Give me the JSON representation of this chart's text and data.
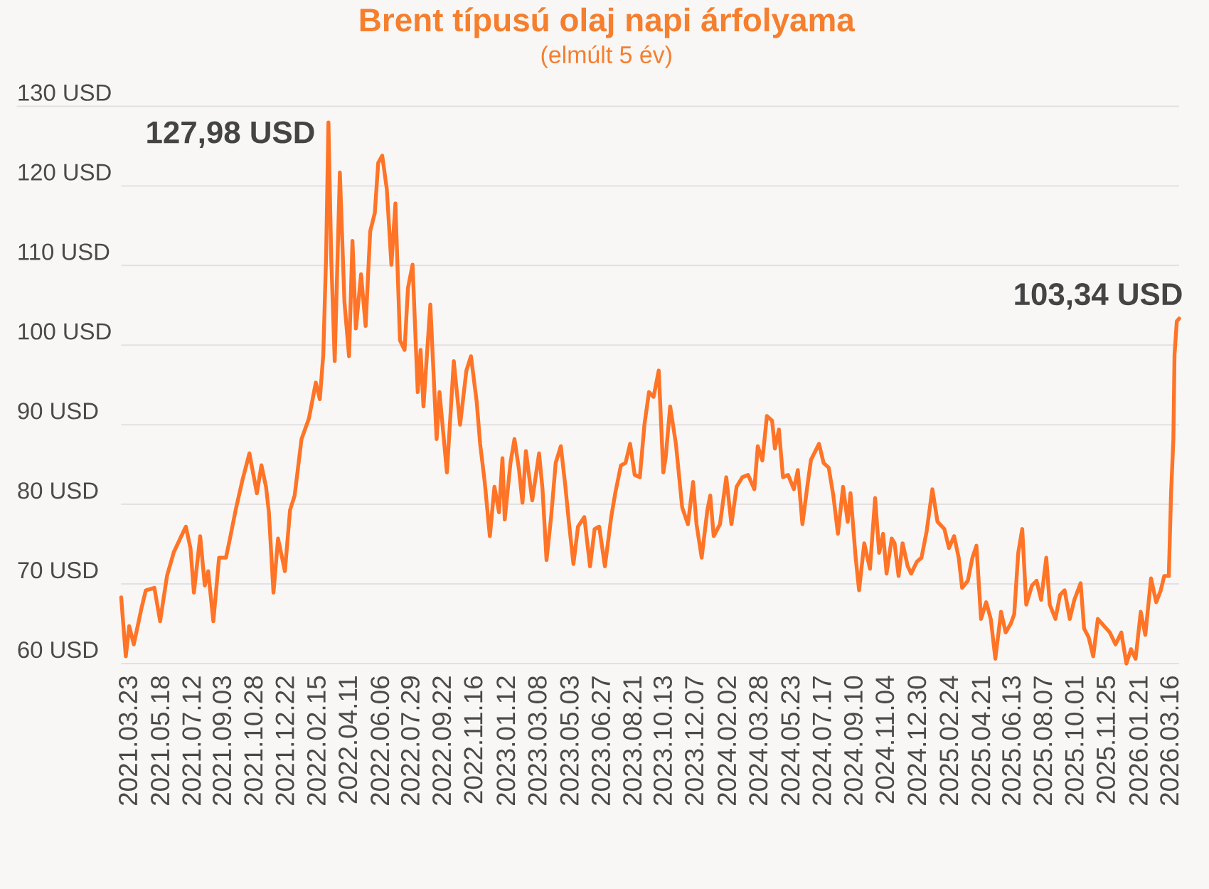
{
  "chart_data": {
    "type": "line",
    "title": "Brent típusú olaj napi árfolyama",
    "subtitle": "(elmúlt 5 év)",
    "x": [
      "2021-03-11",
      "2021-03-19",
      "2021-03-25",
      "2021-04-02",
      "2021-04-15",
      "2021-04-23",
      "2021-05-08",
      "2021-05-18",
      "2021-05-30",
      "2021-06-11",
      "2021-06-24",
      "2021-07-02",
      "2021-07-10",
      "2021-07-16",
      "2021-07-27",
      "2021-08-04",
      "2021-08-10",
      "2021-08-19",
      "2021-08-29",
      "2021-09-10",
      "2021-09-17",
      "2021-09-27",
      "2021-10-09",
      "2021-10-21",
      "2021-11-03",
      "2021-11-11",
      "2021-11-19",
      "2021-11-24",
      "2021-12-02",
      "2021-12-10",
      "2021-12-22",
      "2021-12-31",
      "2022-01-08",
      "2022-01-20",
      "2022-02-02",
      "2022-02-14",
      "2022-02-21",
      "2022-02-27",
      "2022-03-04",
      "2022-03-08",
      "2022-03-13",
      "2022-03-19",
      "2022-03-28",
      "2022-04-05",
      "2022-04-13",
      "2022-04-19",
      "2022-04-25",
      "2022-05-04",
      "2022-05-12",
      "2022-05-20",
      "2022-05-28",
      "2022-06-03",
      "2022-06-10",
      "2022-06-18",
      "2022-06-26",
      "2022-07-03",
      "2022-07-11",
      "2022-07-19",
      "2022-07-25",
      "2022-08-02",
      "2022-08-11",
      "2022-08-16",
      "2022-08-21",
      "2022-09-02",
      "2022-09-13",
      "2022-09-18",
      "2022-10-01",
      "2022-10-13",
      "2022-10-24",
      "2022-11-04",
      "2022-11-12",
      "2022-11-22",
      "2022-11-28",
      "2022-12-06",
      "2022-12-15",
      "2022-12-23",
      "2022-12-31",
      "2023-01-06",
      "2023-01-10",
      "2023-01-20",
      "2023-01-27",
      "2023-02-04",
      "2023-02-10",
      "2023-02-16",
      "2023-02-27",
      "2023-03-11",
      "2023-03-17",
      "2023-03-24",
      "2023-04-01",
      "2023-04-09",
      "2023-04-18",
      "2023-04-26",
      "2023-05-02",
      "2023-05-10",
      "2023-05-18",
      "2023-05-29",
      "2023-06-08",
      "2023-06-16",
      "2023-06-24",
      "2023-07-04",
      "2023-07-15",
      "2023-07-22",
      "2023-08-01",
      "2023-08-09",
      "2023-08-17",
      "2023-08-25",
      "2023-09-03",
      "2023-09-11",
      "2023-09-19",
      "2023-09-27",
      "2023-10-06",
      "2023-10-14",
      "2023-10-18",
      "2023-10-26",
      "2023-11-05",
      "2023-11-16",
      "2023-11-26",
      "2023-12-05",
      "2023-12-11",
      "2023-12-20",
      "2023-12-30",
      "2024-01-04",
      "2024-01-10",
      "2024-01-21",
      "2024-02-01",
      "2024-02-10",
      "2024-02-19",
      "2024-02-29",
      "2024-03-10",
      "2024-03-21",
      "2024-03-27",
      "2024-04-04",
      "2024-04-12",
      "2024-04-21",
      "2024-04-26",
      "2024-05-03",
      "2024-05-10",
      "2024-05-19",
      "2024-05-29",
      "2024-06-05",
      "2024-06-13",
      "2024-06-22",
      "2024-06-28",
      "2024-07-12",
      "2024-07-20",
      "2024-07-29",
      "2024-08-06",
      "2024-08-14",
      "2024-08-23",
      "2024-08-31",
      "2024-09-05",
      "2024-09-14",
      "2024-09-20",
      "2024-09-29",
      "2024-10-09",
      "2024-10-18",
      "2024-10-25",
      "2024-11-01",
      "2024-11-07",
      "2024-11-16",
      "2024-11-21",
      "2024-11-28",
      "2024-12-05",
      "2024-12-14",
      "2024-12-20",
      "2024-12-30",
      "2025-01-07",
      "2025-01-16",
      "2025-01-26",
      "2025-02-04",
      "2025-02-16",
      "2025-02-24",
      "2025-03-05",
      "2025-03-13",
      "2025-03-19",
      "2025-03-29",
      "2025-04-06",
      "2025-04-13",
      "2025-04-21",
      "2025-04-30",
      "2025-05-08",
      "2025-05-16",
      "2025-05-26",
      "2025-06-03",
      "2025-06-12",
      "2025-06-18",
      "2025-06-25",
      "2025-07-02",
      "2025-07-09",
      "2025-07-19",
      "2025-07-27",
      "2025-08-04",
      "2025-08-13",
      "2025-08-19",
      "2025-08-29",
      "2025-09-06",
      "2025-09-14",
      "2025-09-23",
      "2025-10-01",
      "2025-10-12",
      "2025-10-18",
      "2025-10-26",
      "2025-11-03",
      "2025-11-11",
      "2025-11-22",
      "2025-12-02",
      "2025-12-12",
      "2025-12-22",
      "2025-12-31",
      "2026-01-08",
      "2026-01-16",
      "2026-01-25",
      "2026-02-02",
      "2026-02-12",
      "2026-02-21",
      "2026-03-01",
      "2026-03-07",
      "2026-03-15",
      "2026-03-19",
      "2026-03-23",
      "2026-03-25",
      "2026-03-29",
      "2026-04-02"
    ],
    "values": [
      68.3,
      60.9,
      64.7,
      62.4,
      66.8,
      69.2,
      69.5,
      65.3,
      71,
      74,
      76,
      77.2,
      74.5,
      68.9,
      76,
      69.8,
      71.6,
      65.3,
      73.3,
      73.3,
      75.7,
      79.3,
      83.1,
      86.4,
      81.4,
      84.9,
      82.2,
      79,
      68.9,
      75.7,
      71.6,
      79.3,
      81.1,
      88.2,
      90.8,
      95.3,
      93.2,
      98.8,
      111.3,
      127.98,
      110.7,
      98,
      121.7,
      105.4,
      98.6,
      113.1,
      102.1,
      108.9,
      102.4,
      114.3,
      116.6,
      122.9,
      123.8,
      119.6,
      110.1,
      117.8,
      100.6,
      99.4,
      107.2,
      110.1,
      94.1,
      99.4,
      92.3,
      105.1,
      88.2,
      94.1,
      84,
      98,
      90,
      96.8,
      98.6,
      92.9,
      87.6,
      82.8,
      76,
      82.2,
      79,
      85.8,
      78.1,
      85.2,
      88.2,
      84.3,
      80.2,
      86.7,
      80.5,
      86.4,
      81.9,
      73,
      78.4,
      85.2,
      87.3,
      82.2,
      77.8,
      72.5,
      77.2,
      78.4,
      72.2,
      76.9,
      77.2,
      72.2,
      78.4,
      81.4,
      84.9,
      85.2,
      87.6,
      83.7,
      83.4,
      90,
      94.1,
      93.5,
      96.8,
      84,
      85.8,
      92.3,
      87.6,
      79.6,
      77.5,
      82.8,
      77.5,
      73.3,
      79.3,
      81.1,
      76,
      77.5,
      83.4,
      77.5,
      82.2,
      83.4,
      83.7,
      81.9,
      87.3,
      85.5,
      91.1,
      90.5,
      87,
      89.4,
      83.4,
      83.7,
      81.9,
      84.3,
      77.5,
      82.5,
      85.6,
      87.6,
      85.2,
      84.6,
      81.1,
      76.3,
      82.2,
      77.8,
      81.4,
      73.3,
      69.2,
      75.1,
      71.9,
      80.8,
      73.9,
      76.3,
      71.3,
      75.7,
      75.1,
      71,
      75.1,
      72.2,
      71.3,
      72.8,
      73.3,
      76.6,
      81.9,
      77.8,
      76.9,
      74.5,
      76,
      73.3,
      69.5,
      70.4,
      73.3,
      74.8,
      65.6,
      67.7,
      65.6,
      60.6,
      66.5,
      63.9,
      65,
      66.2,
      73.9,
      76.9,
      67.4,
      69.8,
      70.4,
      68,
      73.3,
      67.4,
      65.6,
      68.6,
      69.2,
      65.6,
      68,
      70.1,
      64.4,
      63.3,
      60.9,
      65.6,
      64.7,
      63.9,
      62.4,
      63.9,
      60,
      61.8,
      60.6,
      66.5,
      63.6,
      70.7,
      67.7,
      69.2,
      71,
      71,
      81.4,
      88.2,
      98.8,
      103,
      103.34
    ],
    "color": "#ff7426",
    "xlim": [
      "2021-03-11",
      "2026-04-02"
    ],
    "xticks": [
      {
        "value": "2021-03-23",
        "label": "2021.03.23"
      },
      {
        "value": "2021-05-18",
        "label": "2021.05.18"
      },
      {
        "value": "2021-07-12",
        "label": "2021.07.12"
      },
      {
        "value": "2021-09-03",
        "label": "2021.09.03"
      },
      {
        "value": "2021-10-28",
        "label": "2021.10.28"
      },
      {
        "value": "2021-12-22",
        "label": "2021.12.22"
      },
      {
        "value": "2022-02-15",
        "label": "2022.02.15"
      },
      {
        "value": "2022-04-11",
        "label": "2022.04.11"
      },
      {
        "value": "2022-06-06",
        "label": "2022.06.06"
      },
      {
        "value": "2022-07-29",
        "label": "2022.07.29"
      },
      {
        "value": "2022-09-22",
        "label": "2022.09.22"
      },
      {
        "value": "2022-11-16",
        "label": "2022.11.16"
      },
      {
        "value": "2023-01-12",
        "label": "2023.01.12"
      },
      {
        "value": "2023-03-08",
        "label": "2023.03.08"
      },
      {
        "value": "2023-05-03",
        "label": "2023.05.03"
      },
      {
        "value": "2023-06-27",
        "label": "2023.06.27"
      },
      {
        "value": "2023-08-21",
        "label": "2023.08.21"
      },
      {
        "value": "2023-10-13",
        "label": "2023.10.13"
      },
      {
        "value": "2023-12-07",
        "label": "2023.12.07"
      },
      {
        "value": "2024-02-02",
        "label": "2024.02.02"
      },
      {
        "value": "2024-03-28",
        "label": "2024.03.28"
      },
      {
        "value": "2024-05-23",
        "label": "2024.05.23"
      },
      {
        "value": "2024-07-17",
        "label": "2024.07.17"
      },
      {
        "value": "2024-09-10",
        "label": "2024.09.10"
      },
      {
        "value": "2024-11-04",
        "label": "2024.11.04"
      },
      {
        "value": "2024-12-30",
        "label": "2024.12.30"
      },
      {
        "value": "2025-02-24",
        "label": "2025.02.24"
      },
      {
        "value": "2025-04-21",
        "label": "2025.04.21"
      },
      {
        "value": "2025-06-13",
        "label": "2025.06.13"
      },
      {
        "value": "2025-08-07",
        "label": "2025.08.07"
      },
      {
        "value": "2025-10-01",
        "label": "2025.10.01"
      },
      {
        "value": "2025-11-25",
        "label": "2025.11.25"
      },
      {
        "value": "2026-01-21",
        "label": "2026.01.21"
      },
      {
        "value": "2026-03-16",
        "label": "2026.03.16"
      }
    ],
    "ylim": [
      60,
      130
    ],
    "yticks": [
      {
        "value": 60,
        "label": "60 USD"
      },
      {
        "value": 70,
        "label": "70 USD"
      },
      {
        "value": 80,
        "label": "80 USD"
      },
      {
        "value": 90,
        "label": "90 USD"
      },
      {
        "value": 100,
        "label": "100 USD"
      },
      {
        "value": 110,
        "label": "110 USD"
      },
      {
        "value": 120,
        "label": "120 USD"
      },
      {
        "value": 130,
        "label": "130 USD"
      }
    ],
    "grid": "y",
    "annotations": [
      {
        "text": "127,98 USD",
        "x": "2022-03-08",
        "y": 127.98
      },
      {
        "text": "103,34 USD",
        "x": "2026-04-02",
        "y": 103.34
      }
    ]
  }
}
